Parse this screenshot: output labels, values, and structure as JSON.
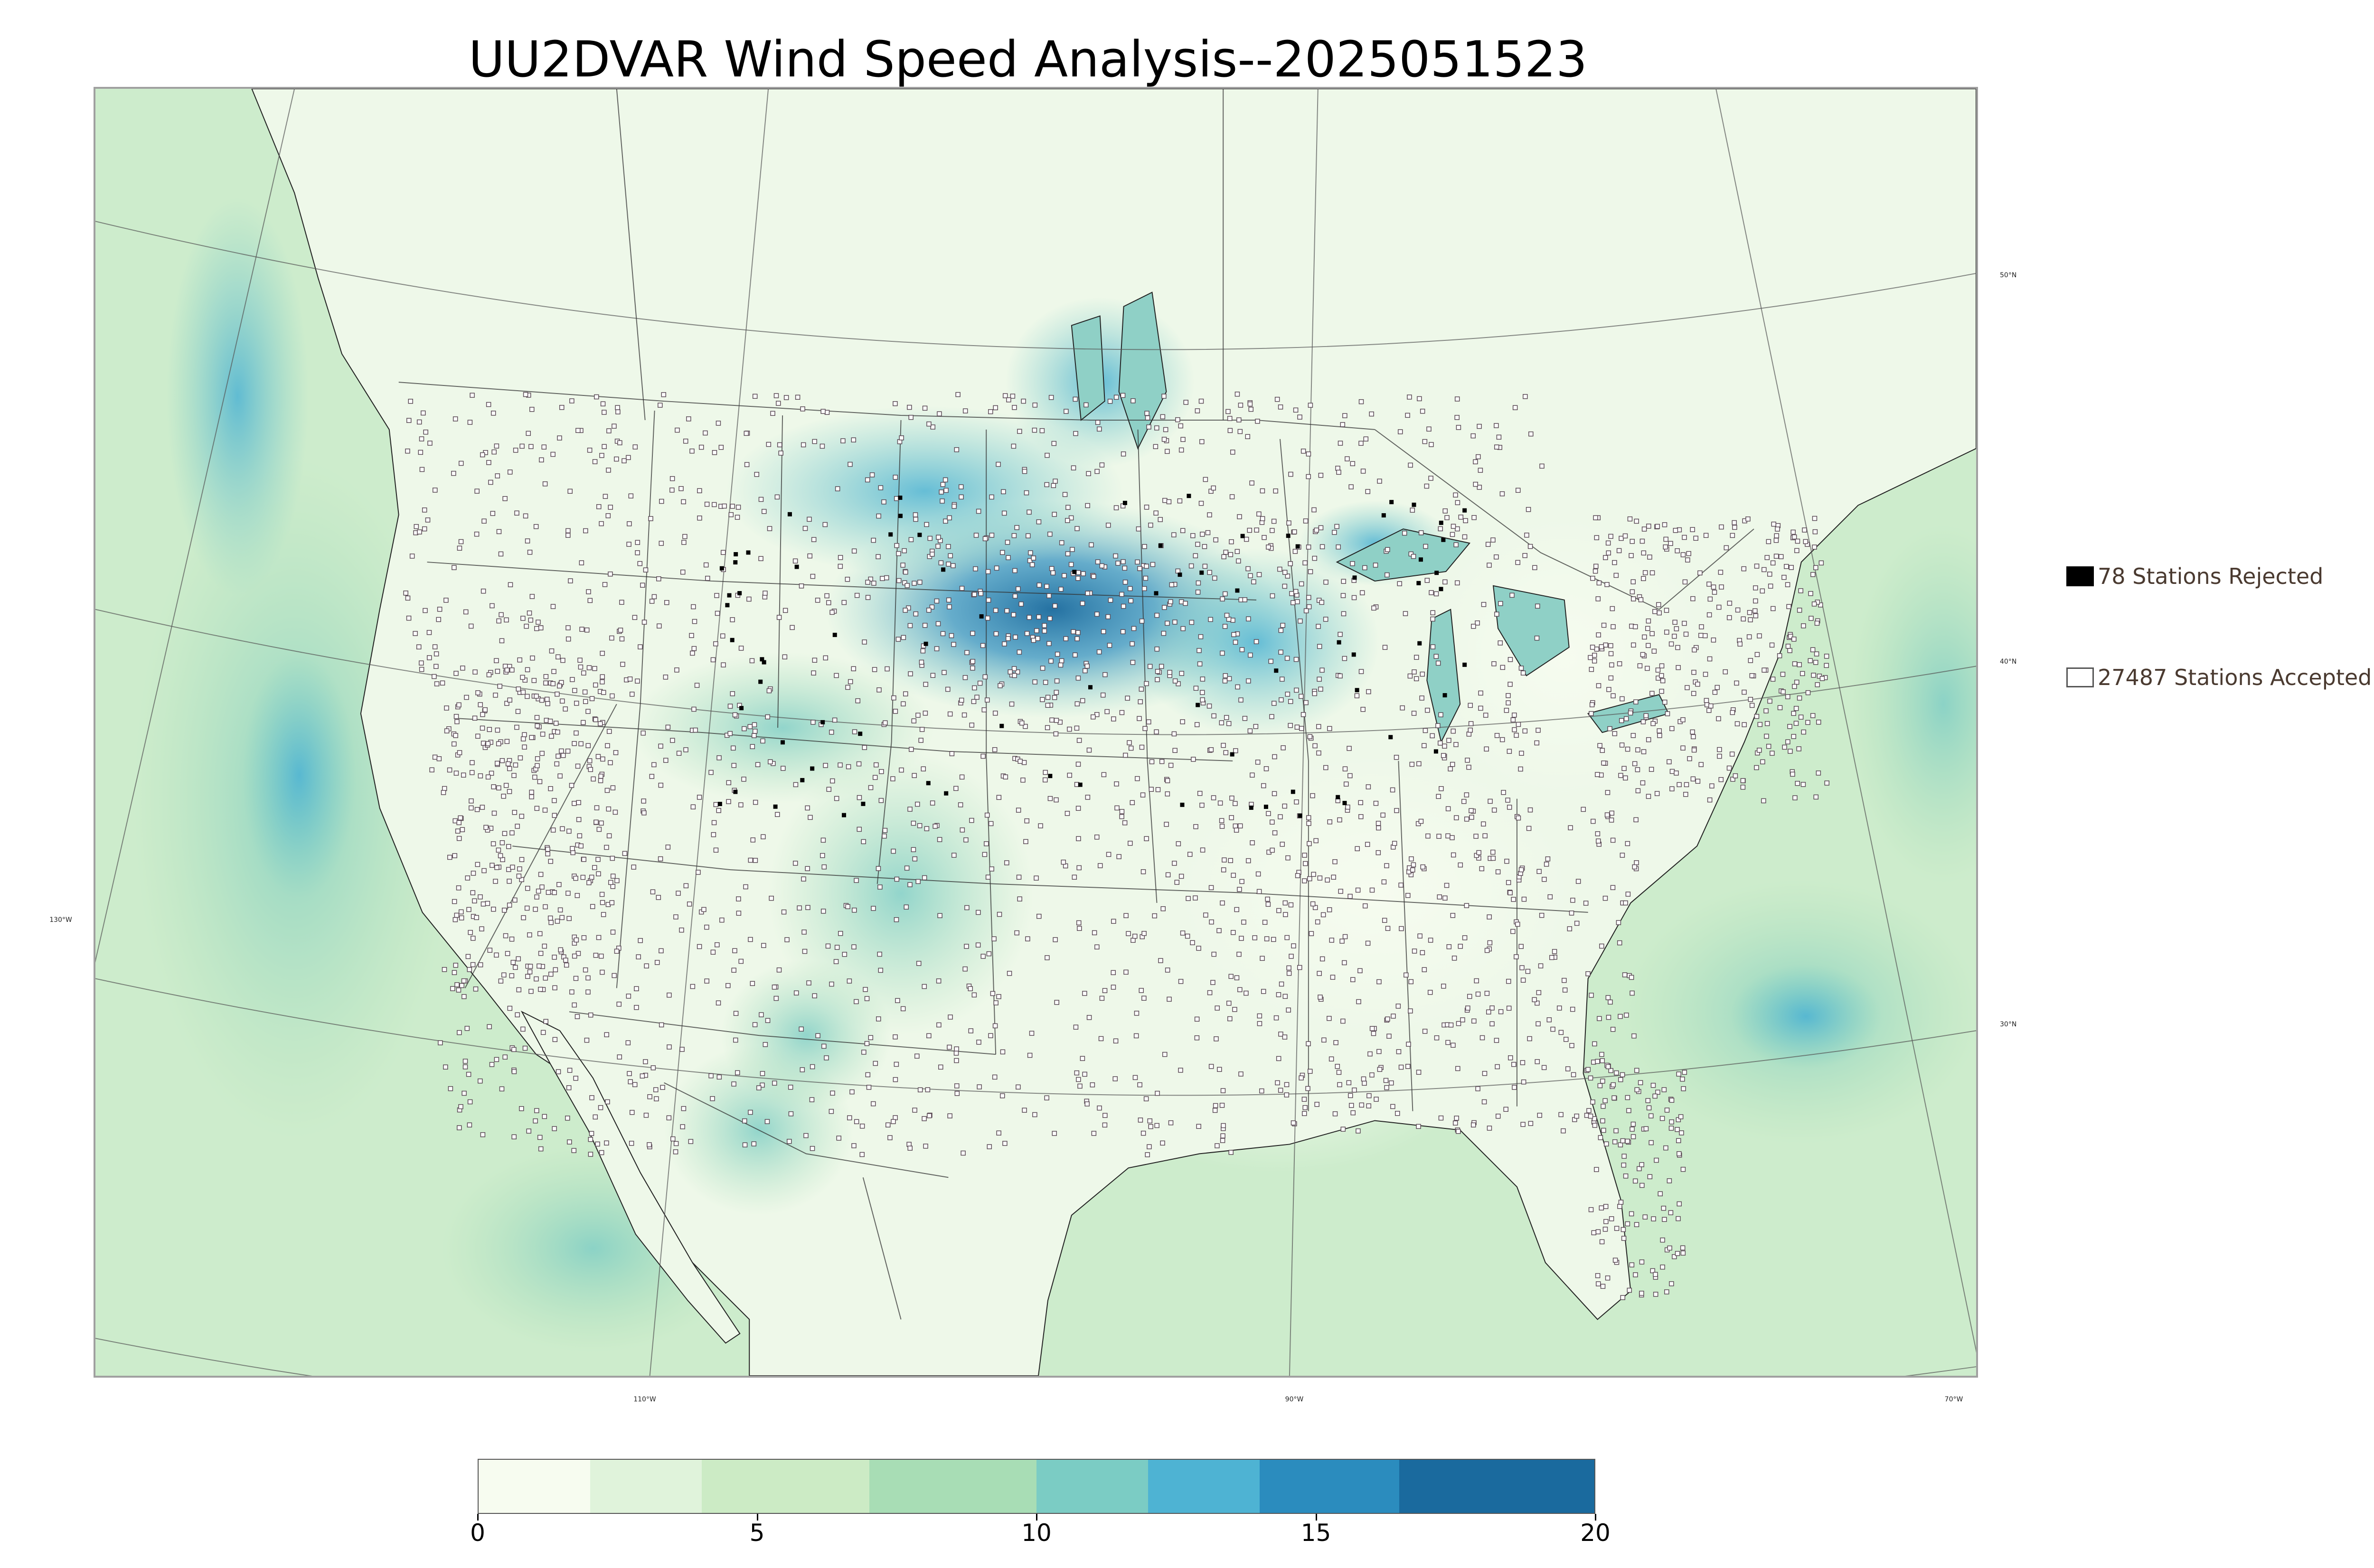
{
  "title": "UU2DVAR Wind Speed Analysis--2025051523",
  "legend": {
    "rejected_label": "78 Stations Rejected",
    "accepted_label": "27487 Stations Accepted",
    "rejected_color": "#000000",
    "accepted_color": "#ffffff"
  },
  "graticule": {
    "lat_labels": [
      "50°N",
      "40°N",
      "30°N"
    ],
    "lon_labels": [
      "130°W",
      "110°W",
      "90°W",
      "70°W"
    ]
  },
  "colorbar": {
    "ticks": [
      "0",
      "5",
      "10",
      "15",
      "20"
    ],
    "min": 0,
    "max": 20,
    "colors": [
      "#f7fcf0",
      "#e0f3db",
      "#ccebc5",
      "#a8ddb5",
      "#7bccc4",
      "#4eb3d3",
      "#2b8cbe",
      "#1a6a9e"
    ],
    "bounds": [
      0,
      2,
      4,
      7,
      10,
      12,
      14,
      16.5,
      20
    ]
  },
  "map": {
    "land_color": "#eef8e9",
    "ocean_color": "#cdeccc",
    "high_wind_color": "#3d95c7",
    "border_color": "#333333"
  }
}
